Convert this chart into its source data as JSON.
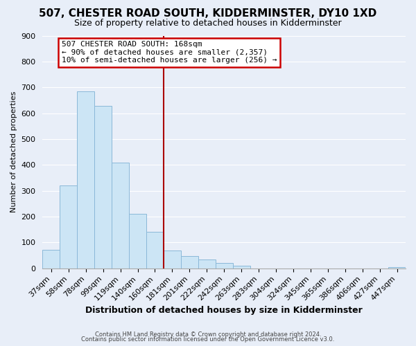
{
  "title_line1": "507, CHESTER ROAD SOUTH, KIDDERMINSTER, DY10 1XD",
  "title_line2": "Size of property relative to detached houses in Kidderminster",
  "xlabel": "Distribution of detached houses by size in Kidderminster",
  "ylabel": "Number of detached properties",
  "bar_labels": [
    "37sqm",
    "58sqm",
    "78sqm",
    "99sqm",
    "119sqm",
    "140sqm",
    "160sqm",
    "181sqm",
    "201sqm",
    "222sqm",
    "242sqm",
    "263sqm",
    "283sqm",
    "304sqm",
    "324sqm",
    "345sqm",
    "365sqm",
    "386sqm",
    "406sqm",
    "427sqm",
    "447sqm"
  ],
  "bar_heights": [
    72,
    320,
    685,
    628,
    410,
    210,
    140,
    68,
    48,
    35,
    22,
    10,
    0,
    0,
    0,
    0,
    0,
    0,
    0,
    0,
    5
  ],
  "bar_color": "#cce5f5",
  "bar_edge_color": "#8ab8d8",
  "vline_index": 7,
  "vline_color": "#aa0000",
  "annotation_title": "507 CHESTER ROAD SOUTH: 168sqm",
  "annotation_line1": "← 90% of detached houses are smaller (2,357)",
  "annotation_line2": "10% of semi-detached houses are larger (256) →",
  "annotation_box_facecolor": "#ffffff",
  "annotation_box_edgecolor": "#cc0000",
  "ylim": [
    0,
    900
  ],
  "yticks": [
    0,
    100,
    200,
    300,
    400,
    500,
    600,
    700,
    800,
    900
  ],
  "footer_line1": "Contains HM Land Registry data © Crown copyright and database right 2024.",
  "footer_line2": "Contains public sector information licensed under the Open Government Licence v3.0.",
  "background_color": "#e8eef8",
  "plot_bg_color": "#e8eef8",
  "grid_color": "#ffffff",
  "title_fontsize": 11,
  "subtitle_fontsize": 9,
  "xlabel_fontsize": 9,
  "ylabel_fontsize": 8,
  "tick_fontsize": 8,
  "annotation_fontsize": 8
}
